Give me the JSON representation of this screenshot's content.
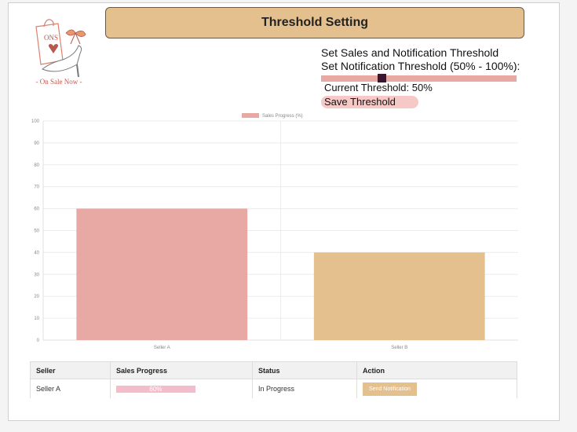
{
  "header": {
    "title": "Threshold Setting"
  },
  "logo": {
    "text": "ONS",
    "caption": "- On Sale Now -"
  },
  "controls": {
    "title": "Set Sales and Notification Threshold",
    "label": "Set Notification Threshold (50% - 100%):",
    "slider": {
      "min": 50,
      "max": 100,
      "value": 50
    },
    "current": "Current Threshold: 50%",
    "save_label": "Save Threshold"
  },
  "colors": {
    "bar_a": "#e8a9a4",
    "bar_b": "#e4c08f",
    "header": "#e4c08f",
    "thumb": "#3a1630"
  },
  "chart_data": {
    "type": "bar",
    "categories": [
      "Seller A",
      "Seller B"
    ],
    "series": [
      {
        "name": "Sales Progress (%)",
        "values": [
          60,
          40
        ]
      }
    ],
    "ylim": [
      0,
      100
    ],
    "yticks": [
      0,
      10,
      20,
      30,
      40,
      50,
      60,
      70,
      80,
      90,
      100
    ],
    "grid": true,
    "legend": "top-center"
  },
  "table": {
    "headers": [
      "Seller",
      "Sales Progress",
      "Status",
      "Action"
    ],
    "rows": [
      {
        "seller": "Seller A",
        "progress": "60%",
        "status": "In Progress",
        "action": "Send Notification"
      }
    ]
  }
}
